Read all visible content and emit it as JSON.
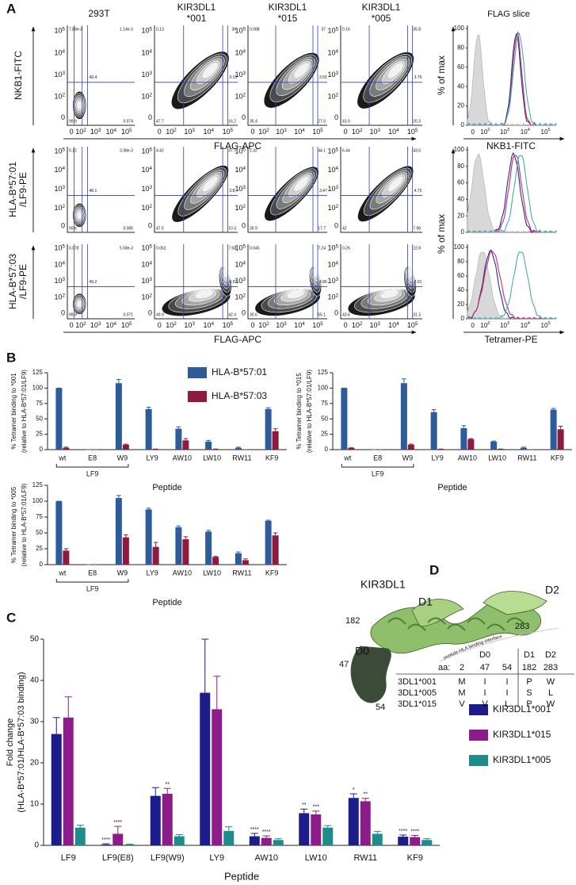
{
  "panel_labels": [
    "A",
    "B",
    "C",
    "D"
  ],
  "panel_a": {
    "column_headers": [
      [
        "293T"
      ],
      [
        "KIR3DL1",
        "*001"
      ],
      [
        "KIR3DL1",
        "*015"
      ],
      [
        "KIR3DL1",
        "*005"
      ]
    ],
    "row_labels": [
      [
        "NKB1-FITC"
      ],
      [
        "HLA-B*57:01",
        "/LF9-PE"
      ],
      [
        "HLA-B*57:03",
        "/LF9-PE"
      ]
    ],
    "x_axis_label": "FLAG-APC",
    "log_ticks": [
      {
        "base": "0"
      },
      {
        "base": "10",
        "exp": "2"
      },
      {
        "base": "10",
        "exp": "3"
      },
      {
        "base": "10",
        "exp": "4"
      },
      {
        "base": "10",
        "exp": "5"
      }
    ],
    "quadrant_labels": [
      [
        [
          "7.88e-3",
          "1.14e-3",
          "49.4",
          "99.9",
          "0.074"
        ],
        [
          "0.13",
          "36",
          "3.15",
          "47.7",
          "16.2"
        ],
        [
          "0.088",
          "37",
          "3.55",
          "35.4",
          "27.5"
        ],
        [
          "0.16",
          "35.8",
          "3.76",
          "43.5",
          "20.3"
        ]
      ],
      [
        [
          "0.12",
          "3.38e-3",
          "48.1",
          "99.6",
          "0.085"
        ],
        [
          "4.42",
          "37.7",
          "3.8",
          "47.5",
          "10.3"
        ],
        [
          "2.32",
          "44.1",
          "3.47",
          "35.9",
          "17.7"
        ],
        [
          "6.44",
          "43.6",
          "4.72",
          "42",
          "7.98"
        ]
      ],
      [
        [
          "0.078",
          "5.58e-3",
          "49.2",
          "99.9",
          "0.071"
        ],
        [
          "0.062",
          "7.58",
          "0.97",
          "49.9",
          "42.4"
        ],
        [
          "0.045",
          "7.24",
          "4.86",
          "30.6",
          "55.1"
        ],
        [
          "0.26",
          "22.8",
          "3.01",
          "43.6",
          "31.3"
        ]
      ]
    ],
    "hist_header": "FLAG slice",
    "hist_ylabel": "% of max",
    "hist_yticks": [
      0,
      20,
      40,
      60,
      80,
      100
    ],
    "hist_xlabels": [
      "NKB1-FITC",
      "Tetramer-PE"
    ]
  },
  "chart_data": [
    {
      "type": "bar",
      "ylabel": [
        "% Tetramer binding to *001",
        "(relative to HLA-B*57:01/LF9)"
      ],
      "xlabel": "Peptide",
      "group_label": "LF9",
      "categories": [
        "wt",
        "E8",
        "W9",
        "LY9",
        "AW10",
        "LW10",
        "RW11",
        "KF9"
      ],
      "series": [
        {
          "name": "HLA-B*57:01",
          "color": "#2e5c9a",
          "values": [
            100,
            0,
            108,
            66,
            34,
            13,
            3,
            66
          ],
          "errors": [
            0,
            0,
            6,
            3,
            3,
            2,
            1,
            2
          ]
        },
        {
          "name": "HLA-B*57:03",
          "color": "#8e1b3e",
          "values": [
            3,
            0,
            8,
            1,
            15,
            1,
            0,
            30
          ],
          "errors": [
            1,
            0,
            1,
            0,
            3,
            0,
            0,
            4
          ]
        }
      ],
      "ylim": [
        0,
        125
      ],
      "yticks": [
        0,
        25,
        50,
        75,
        100,
        125
      ]
    },
    {
      "type": "bar",
      "ylabel": [
        "% Tetramer binding to *015",
        "(relative to HLA-B*57:01/LF9)"
      ],
      "xlabel": "Peptide",
      "group_label": "LF9",
      "categories": [
        "wt",
        "E8",
        "W9",
        "LY9",
        "AW10",
        "LW10",
        "RW11",
        "KF9"
      ],
      "series": [
        {
          "color": "#2e5c9a",
          "values": [
            100,
            0,
            108,
            61,
            35,
            13,
            3,
            65
          ],
          "errors": [
            0,
            0,
            7,
            4,
            4,
            1,
            1,
            2
          ]
        },
        {
          "color": "#8e1b3e",
          "values": [
            3,
            0,
            8,
            1,
            17,
            1,
            0,
            33
          ],
          "errors": [
            0,
            0,
            1,
            0,
            1,
            0,
            0,
            5
          ]
        }
      ],
      "ylim": [
        0,
        125
      ],
      "yticks": [
        0,
        25,
        50,
        75,
        100,
        125
      ]
    },
    {
      "type": "bar",
      "ylabel": [
        "% Tetramer binding to *005",
        "(relative to HLA-B*57:01/LF9)"
      ],
      "xlabel": "Peptide",
      "group_label": "LF9",
      "categories": [
        "wt",
        "E8",
        "W9",
        "LY9",
        "AW10",
        "LW10",
        "RW11",
        "KF9"
      ],
      "series": [
        {
          "color": "#2e5c9a",
          "values": [
            100,
            0,
            105,
            87,
            59,
            52,
            18,
            69
          ],
          "errors": [
            0,
            0,
            4,
            2,
            2,
            2,
            2,
            1
          ]
        },
        {
          "color": "#8e1b3e",
          "values": [
            22,
            0,
            43,
            28,
            40,
            12,
            7,
            46
          ],
          "errors": [
            3,
            0,
            4,
            7,
            4,
            1,
            2,
            4
          ]
        }
      ],
      "ylim": [
        0,
        125
      ],
      "yticks": [
        0,
        25,
        50,
        75,
        100,
        125
      ]
    },
    {
      "type": "bar",
      "ylabel": [
        "Fold change",
        "(HLA-B*57:01/HLA-B*57:03 binding)"
      ],
      "xlabel": "Peptide",
      "categories": [
        "LF9",
        "LF9(E8)",
        "LF9(W9)",
        "LY9",
        "AW10",
        "LW10",
        "RW11",
        "KF9"
      ],
      "series": [
        {
          "name": "KIR3DL1*001",
          "color": "#1c1c8a",
          "values": [
            27,
            0.2,
            12,
            37,
            2.2,
            7.8,
            11.5,
            2.1
          ],
          "errors": [
            4,
            0.2,
            2,
            13,
            0.7,
            1,
            1,
            0.4
          ],
          "significance": [
            null,
            "****",
            null,
            null,
            "****",
            "**",
            "*",
            "****"
          ]
        },
        {
          "name": "KIR3DL1*015",
          "color": "#8c1c8a",
          "values": [
            31,
            2.8,
            12.5,
            33,
            1.8,
            7.5,
            10.7,
            2
          ],
          "errors": [
            5,
            1.8,
            1.3,
            8,
            0.5,
            0.8,
            0.7,
            0.4
          ],
          "significance": [
            null,
            "****",
            "**",
            null,
            "****",
            "***",
            "**",
            "****"
          ]
        },
        {
          "name": "KIR3DL1*005",
          "color": "#1f8c8c",
          "values": [
            4.3,
            0.2,
            2.2,
            3.5,
            1.3,
            4.3,
            2.8,
            1.3
          ],
          "errors": [
            0.6,
            0.1,
            0.4,
            1,
            0.3,
            0.5,
            0.6,
            0.3
          ],
          "significance": [
            null,
            null,
            null,
            null,
            null,
            null,
            null,
            null
          ]
        }
      ],
      "ylim": [
        0,
        50
      ],
      "yticks": [
        0,
        10,
        20,
        30,
        40,
        50
      ]
    }
  ],
  "panel_d": {
    "structure_labels": {
      "protein": "KIR3DL1",
      "d1": "D1",
      "d2": "D2",
      "d0": "D0",
      "r182": "182",
      "r283": "283",
      "r47": "47",
      "r54": "54",
      "interface": "peptide-HLA binding interface"
    },
    "table": {
      "domains": [
        "D0",
        "D1",
        "D2"
      ],
      "aa_label": "aa:",
      "positions": [
        "2",
        "47",
        "54",
        "182",
        "283"
      ],
      "rows": [
        {
          "name": "3DL1*001",
          "color": "#2b2b8c",
          "residues": [
            "M",
            "I",
            "I",
            "P",
            "W"
          ]
        },
        {
          "name": "3DL1*005",
          "color": "#2a9a9a",
          "residues": [
            "M",
            "I",
            "I",
            "S",
            "L"
          ]
        },
        {
          "name": "3DL1*015",
          "color": "#9a1a8a",
          "residues": [
            "V",
            "V",
            "L",
            "P",
            "W"
          ]
        }
      ]
    }
  }
}
